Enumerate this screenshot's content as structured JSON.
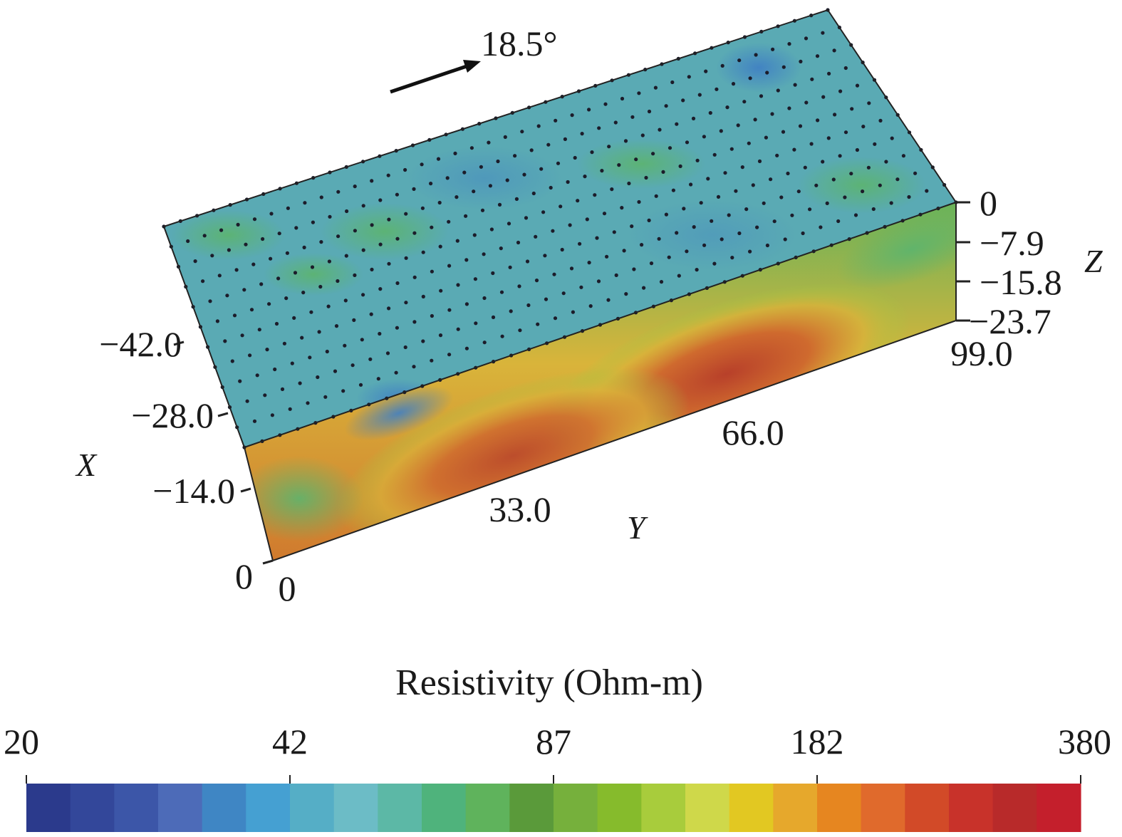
{
  "figure": {
    "direction_label": "18.5°",
    "axes": {
      "x": {
        "name": "X",
        "ticks": [
          "-42.0",
          "-28.0",
          "-14.0",
          "0"
        ]
      },
      "y": {
        "name": "Y",
        "ticks": [
          "0",
          "33.0",
          "66.0",
          "99.0"
        ]
      },
      "z": {
        "name": "Z",
        "ticks": [
          "0",
          "-7.9",
          "-15.8",
          "-23.7"
        ]
      }
    },
    "colorbar": {
      "title": "Resistivity (Ohm-m)",
      "ticks": [
        "20",
        "42",
        "87",
        "182",
        "380"
      ],
      "scale": "log",
      "colors": [
        "#2b3a8c",
        "#33479a",
        "#3c56a8",
        "#4d6bb8",
        "#3f86c4",
        "#45a0d2",
        "#55aec6",
        "#6cbcc6",
        "#5cb8a6",
        "#4fb37c",
        "#5fb35c",
        "#5a9a3a",
        "#76b03c",
        "#86bb2c",
        "#a8cc3c",
        "#cfd84a",
        "#e2c822",
        "#e6a82c",
        "#e68620",
        "#e06a2c",
        "#d24a28",
        "#c8322a",
        "#b82a2a",
        "#c41f2c"
      ]
    },
    "surface_colors": {
      "top": "#5aaab2",
      "front_low": "#d2792e",
      "front_edge": "#64b258",
      "side": "#56b052"
    }
  }
}
